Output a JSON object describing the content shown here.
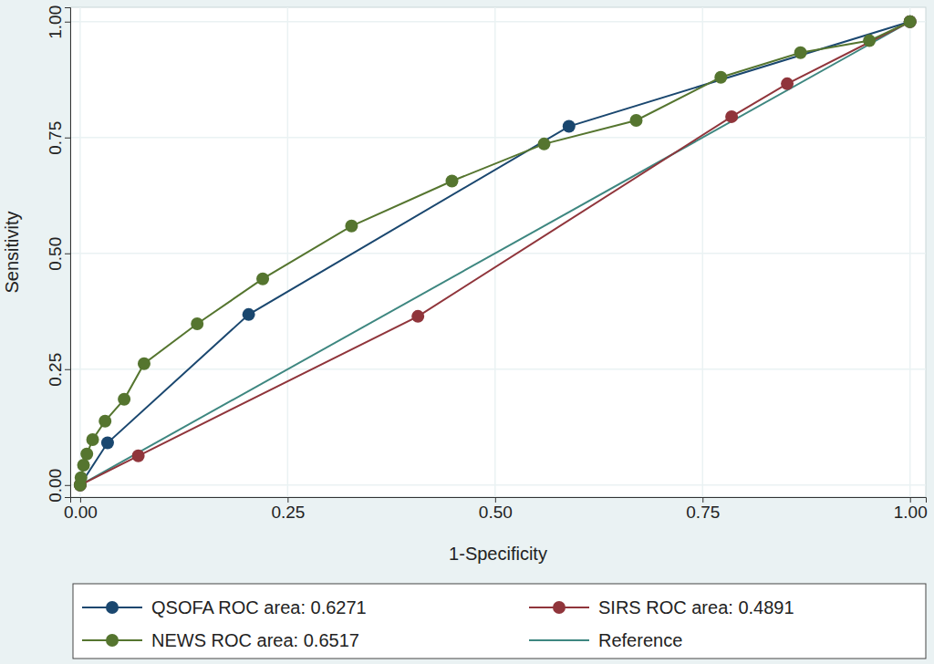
{
  "chart_data": {
    "type": "line",
    "x_label": "1-Specificity",
    "y_label": "Sensitivity",
    "xlim": [
      -0.012,
      1.019
    ],
    "ylim": [
      -0.026,
      1.031
    ],
    "xticks": [
      {
        "value": 0,
        "label": "0.00"
      },
      {
        "value": 0.25,
        "label": "0.25"
      },
      {
        "value": 0.5,
        "label": "0.50"
      },
      {
        "value": 0.75,
        "label": "0.75"
      },
      {
        "value": 1,
        "label": "1.00"
      }
    ],
    "yticks": [
      {
        "value": 0,
        "label": "0.00"
      },
      {
        "value": 0.25,
        "label": "0.25"
      },
      {
        "value": 0.5,
        "label": "0.50"
      },
      {
        "value": 0.75,
        "label": "0.75"
      },
      {
        "value": 1,
        "label": "1.00"
      }
    ],
    "grid": true,
    "legend": "bottom",
    "series": [
      {
        "name": "QSOFA ROC area: 0.6271",
        "color": "#1a476f",
        "marker": "circle",
        "line_style": "solid",
        "x": [
          0,
          0.033,
          0.203,
          0.589,
          1
        ],
        "values": [
          0,
          0.091,
          0.368,
          0.774,
          1
        ]
      },
      {
        "name": "SIRS ROC area: 0.4891",
        "color": "#90353b",
        "marker": "circle",
        "line_style": "solid",
        "x": [
          0,
          0.07,
          0.407,
          0.785,
          0.852,
          1
        ],
        "values": [
          0,
          0.063,
          0.364,
          0.795,
          0.866,
          1
        ]
      },
      {
        "name": "NEWS ROC area: 0.6517",
        "color": "#55752f",
        "marker": "circle",
        "line_style": "solid",
        "x": [
          0,
          0.001,
          0.004,
          0.008,
          0.015,
          0.03,
          0.053,
          0.077,
          0.141,
          0.22,
          0.327,
          0.448,
          0.559,
          0.67,
          0.772,
          0.868,
          0.951,
          1
        ],
        "values": [
          0,
          0.016,
          0.043,
          0.067,
          0.098,
          0.138,
          0.185,
          0.262,
          0.348,
          0.445,
          0.559,
          0.656,
          0.736,
          0.787,
          0.88,
          0.933,
          0.959,
          1
        ]
      },
      {
        "name": "Reference",
        "color": "#3e8780",
        "marker": "none",
        "line_style": "solid",
        "x": [
          0,
          1
        ],
        "values": [
          0,
          1
        ]
      }
    ]
  }
}
